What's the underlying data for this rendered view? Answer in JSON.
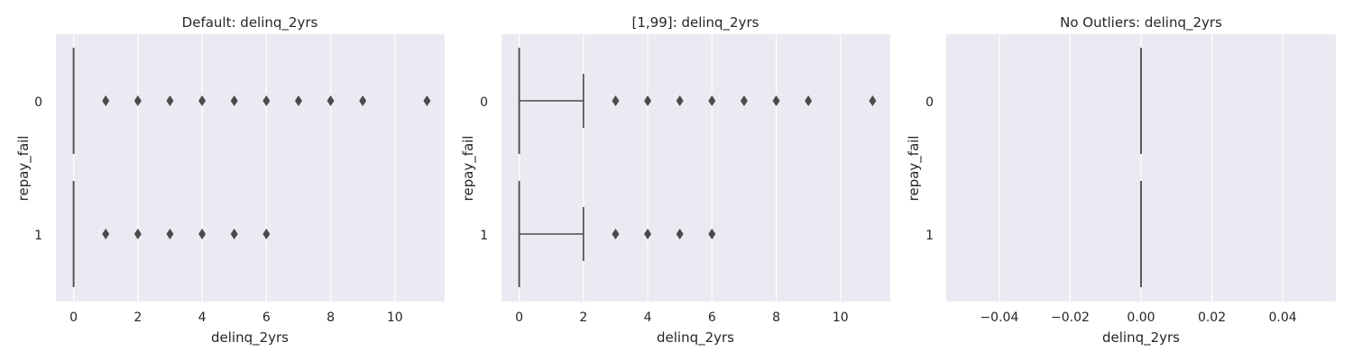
{
  "chart_data": [
    {
      "type": "boxplot",
      "title": "Default: delinq_2yrs",
      "xlabel": "delinq_2yrs",
      "ylabel": "repay_fail",
      "categories": [
        "0",
        "1"
      ],
      "xlim": [
        -0.55,
        11.55
      ],
      "xticks": [
        0,
        2,
        4,
        6,
        8,
        10
      ],
      "xtick_labels": [
        "0",
        "2",
        "4",
        "6",
        "8",
        "10"
      ],
      "grid": true,
      "boxes": [
        {
          "category": "0",
          "whislo": 0,
          "q1": 0,
          "median": 0,
          "q3": 0,
          "whishi": 0,
          "fliers": [
            1,
            2,
            3,
            4,
            5,
            6,
            7,
            8,
            9,
            11
          ]
        },
        {
          "category": "1",
          "whislo": 0,
          "q1": 0,
          "median": 0,
          "q3": 0,
          "whishi": 0,
          "fliers": [
            1,
            2,
            3,
            4,
            5,
            6
          ]
        }
      ]
    },
    {
      "type": "boxplot",
      "title": "[1,99]: delinq_2yrs",
      "xlabel": "delinq_2yrs",
      "ylabel": "repay_fail",
      "categories": [
        "0",
        "1"
      ],
      "xlim": [
        -0.55,
        11.55
      ],
      "xticks": [
        0,
        2,
        4,
        6,
        8,
        10
      ],
      "xtick_labels": [
        "0",
        "2",
        "4",
        "6",
        "8",
        "10"
      ],
      "grid": true,
      "boxes": [
        {
          "category": "0",
          "whislo": 0,
          "q1": 0,
          "median": 0,
          "q3": 0,
          "whishi": 2,
          "fliers": [
            3,
            4,
            5,
            6,
            7,
            8,
            9,
            11
          ]
        },
        {
          "category": "1",
          "whislo": 0,
          "q1": 0,
          "median": 0,
          "q3": 0,
          "whishi": 2,
          "fliers": [
            3,
            4,
            5,
            6
          ]
        }
      ]
    },
    {
      "type": "boxplot",
      "title": "No Outliers: delinq_2yrs",
      "xlabel": "delinq_2yrs",
      "ylabel": "repay_fail",
      "categories": [
        "0",
        "1"
      ],
      "xlim": [
        -0.055,
        0.055
      ],
      "xticks": [
        -0.04,
        -0.02,
        0.0,
        0.02,
        0.04
      ],
      "xtick_labels": [
        "−0.04",
        "−0.02",
        "0.00",
        "0.02",
        "0.04"
      ],
      "grid": true,
      "boxes": [
        {
          "category": "0",
          "whislo": 0,
          "q1": 0,
          "median": 0,
          "q3": 0,
          "whishi": 0,
          "fliers": []
        },
        {
          "category": "1",
          "whislo": 0,
          "q1": 0,
          "median": 0,
          "q3": 0,
          "whishi": 0,
          "fliers": []
        }
      ]
    }
  ],
  "colors": {
    "plot_background": "#eaeaf2",
    "grid": "#ffffff",
    "box_line": "#4a4a4a",
    "flier": "#4a4a4a",
    "text": "#262626"
  }
}
